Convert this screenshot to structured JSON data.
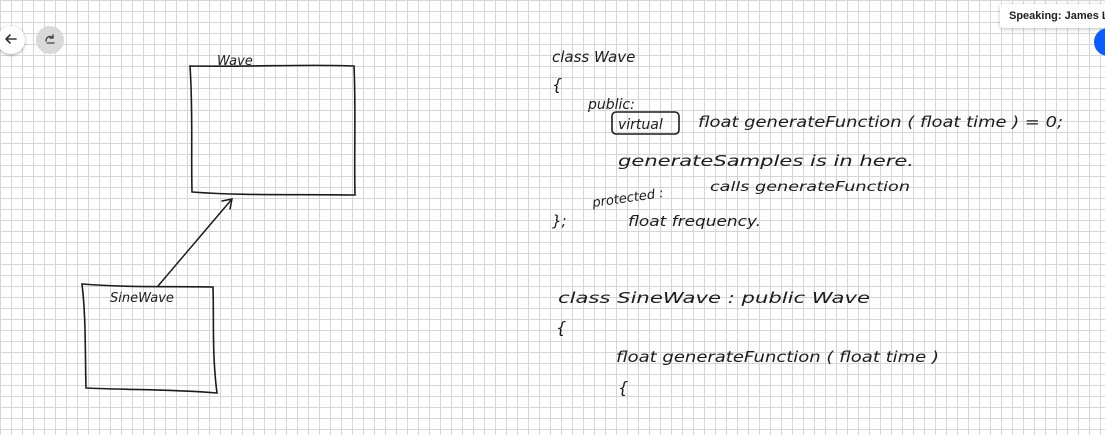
{
  "toolbar": {
    "back_icon": "arrow-left-icon",
    "redo_icon": "redo-icon"
  },
  "speaking": {
    "label": "Speaking: James La"
  },
  "diagram": {
    "wave_label": "Wave",
    "sinewave_label": "SineWave"
  },
  "code": {
    "line1": "class  Wave",
    "line2": "{",
    "line3": "public:",
    "line4_keyword": "virtual",
    "line4_rest": "float  generateFunction ( float  time ) = 0;",
    "line5": "generateSamples  is  in  here.",
    "line6": "calls  generateFunction",
    "line7": "protected :",
    "line8": "};",
    "line9": "float  frequency.",
    "line10": "class  SineWave  :  public  Wave",
    "line11": "{",
    "line12": "float  generateFunction (  float  time )",
    "line13": "{"
  },
  "colors": {
    "ink": "#1c1c1c",
    "grid": "#d6d6d6",
    "accent": "#0b5cff"
  }
}
